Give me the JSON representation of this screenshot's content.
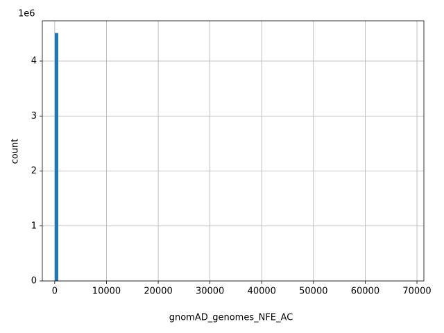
{
  "chart_data": {
    "type": "histogram",
    "xlabel": "gnomAD_genomes_NFE_AC",
    "ylabel": "count",
    "y_offset_label": "1e6",
    "color": "#1f77b4",
    "grid": true,
    "xlim": [
      -2400,
      71340
    ],
    "ylim": [
      0,
      4732000
    ],
    "xticks": [
      0,
      10000,
      20000,
      30000,
      40000,
      50000,
      60000,
      70000
    ],
    "yticks": [
      0,
      {
        "value": 1000000,
        "label": "1"
      },
      {
        "value": 2000000,
        "label": "2"
      },
      {
        "value": 3000000,
        "label": "3"
      },
      {
        "value": 4000000,
        "label": "4"
      }
    ],
    "bins": [
      0,
      680,
      1360,
      2040,
      2720,
      3400,
      4080,
      4760,
      5440,
      6120,
      6800,
      7480,
      8160,
      8840,
      9520,
      10200,
      10880,
      11560,
      12240,
      12920,
      13600,
      14280,
      14960,
      15640,
      16320,
      17000,
      17680,
      18360,
      19040,
      19720,
      20400,
      21080,
      21760,
      22440,
      23120,
      23800,
      24480,
      25160,
      25840,
      26520,
      27200,
      27880,
      28560,
      29240,
      29920,
      30600,
      31280,
      31960,
      32640,
      33320,
      34000,
      34680,
      35360,
      36040,
      36720,
      37400,
      38080,
      38760,
      39440,
      40120,
      40800,
      41480,
      42160,
      42840,
      43520,
      44200,
      44880,
      45560,
      46240,
      46920,
      47600,
      48280,
      48960,
      49640,
      50320,
      51000,
      51680,
      52360,
      53040,
      53720,
      54400,
      55080,
      55760,
      56440,
      57120,
      57800,
      58480,
      59160,
      59840,
      60520,
      61200,
      61880,
      62560,
      63240,
      63920,
      64600,
      65280,
      65960,
      66640,
      67320,
      68000
    ],
    "values": [
      4510000,
      0,
      0,
      0,
      0,
      0,
      0,
      0,
      0,
      0,
      0,
      0,
      0,
      0,
      0,
      0,
      0,
      0,
      0,
      0,
      0,
      0,
      0,
      0,
      0,
      0,
      0,
      0,
      0,
      0,
      0,
      0,
      0,
      0,
      0,
      0,
      0,
      0,
      0,
      0,
      0,
      0,
      0,
      0,
      0,
      0,
      0,
      0,
      0,
      0,
      0,
      0,
      0,
      0,
      0,
      0,
      0,
      0,
      0,
      0,
      0,
      0,
      0,
      0,
      0,
      0,
      0,
      0,
      0,
      0,
      0,
      0,
      0,
      0,
      0,
      0,
      0,
      0,
      0,
      0,
      0,
      0,
      0,
      0,
      0,
      0,
      0,
      0,
      0,
      0,
      0,
      0,
      0,
      0,
      0,
      0,
      0,
      0,
      0,
      0
    ]
  }
}
